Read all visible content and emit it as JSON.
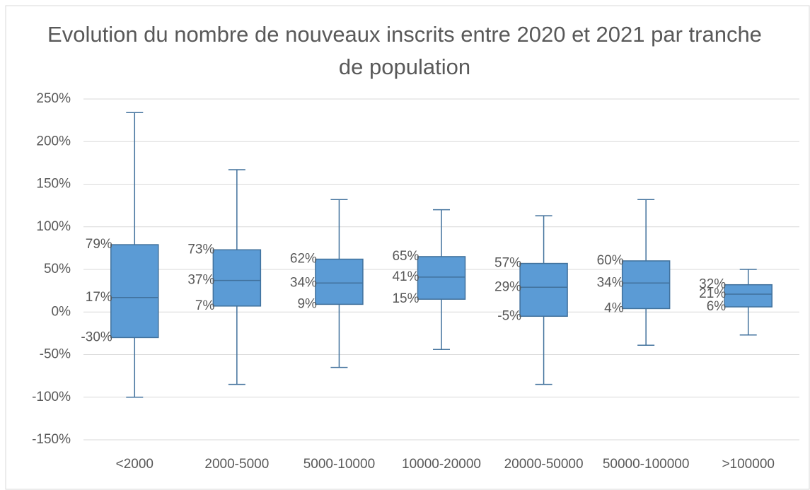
{
  "chart_data": {
    "type": "box",
    "title": "Evolution du nombre de nouveaux inscrits entre 2020 et 2021 par tranche de population",
    "categories": [
      "<2000",
      "2000-5000",
      "5000-10000",
      "10000-20000",
      "20000-50000",
      "50000-100000",
      ">100000"
    ],
    "whisker_high": {
      "values": [
        234,
        167,
        132,
        120,
        113,
        132,
        50
      ]
    },
    "q3": {
      "values": [
        79,
        73,
        62,
        65,
        57,
        60,
        32
      ],
      "value_labels": [
        "79%",
        "73%",
        "62%",
        "65%",
        "57%",
        "60%",
        "32%"
      ]
    },
    "median": {
      "values": [
        17,
        37,
        34,
        41,
        29,
        34,
        21
      ],
      "value_labels": [
        "17%",
        "37%",
        "34%",
        "41%",
        "29%",
        "34%",
        "21%"
      ]
    },
    "q1": {
      "values": [
        -30,
        7,
        9,
        15,
        -5,
        4,
        6
      ],
      "value_labels": [
        "-30%",
        "7%",
        "9%",
        "15%",
        "-5%",
        "4%",
        "6%"
      ]
    },
    "whisker_low": {
      "values": [
        -100,
        -85,
        -65,
        -44,
        -85,
        -39,
        -27
      ]
    },
    "color": "#5b9bd5",
    "ylim": [
      -150,
      250
    ],
    "yticks": [
      {
        "value": -150,
        "label": "-150%"
      },
      {
        "value": -100,
        "label": "-100%"
      },
      {
        "value": -50,
        "label": "-50%"
      },
      {
        "value": 0,
        "label": "0%"
      },
      {
        "value": 50,
        "label": "50%"
      },
      {
        "value": 100,
        "label": "100%"
      },
      {
        "value": 150,
        "label": "150%"
      },
      {
        "value": 200,
        "label": "200%"
      },
      {
        "value": 250,
        "label": "250%"
      }
    ],
    "grid": true
  }
}
